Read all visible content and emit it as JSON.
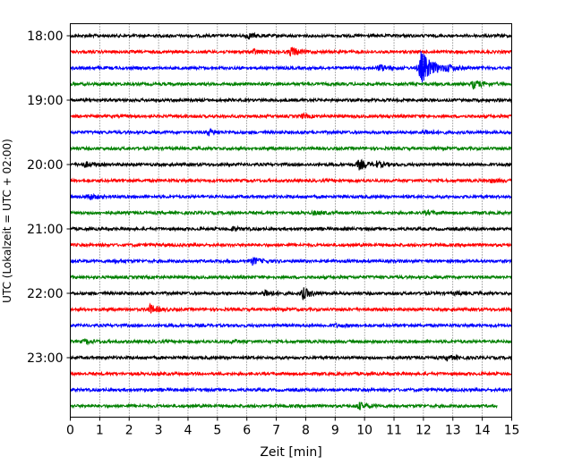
{
  "chart_data": {
    "type": "line",
    "title": "",
    "xlabel": "Zeit  [min]",
    "ylabel": "UTC (Lokalzeit = UTC + 02:00)",
    "xlim": [
      0,
      15
    ],
    "x_ticks": [
      "0",
      "1",
      "2",
      "3",
      "4",
      "5",
      "6",
      "7",
      "8",
      "9",
      "10",
      "11",
      "12",
      "13",
      "14",
      "15"
    ],
    "y_ticks": [
      "18:00",
      "19:00",
      "20:00",
      "21:00",
      "22:00",
      "23:00"
    ],
    "grid": "vertical dotted",
    "colors": [
      "#000000",
      "#ff0000",
      "#0000ff",
      "#008000"
    ],
    "trace_interval_min": 15,
    "traces": [
      {
        "start": "18:00",
        "color": "#000000",
        "events": [
          [
            6.0,
            0.35
          ]
        ]
      },
      {
        "start": "18:15",
        "color": "#ff0000",
        "events": [
          [
            7.5,
            0.6
          ],
          [
            6.2,
            0.3
          ]
        ]
      },
      {
        "start": "18:30",
        "color": "#0000ff",
        "events": [
          [
            11.9,
            2.2
          ],
          [
            10.5,
            0.4
          ],
          [
            12.8,
            0.3
          ]
        ]
      },
      {
        "start": "18:45",
        "color": "#008000",
        "events": [
          [
            13.7,
            0.5
          ]
        ]
      },
      {
        "start": "19:00",
        "color": "#000000",
        "events": []
      },
      {
        "start": "19:15",
        "color": "#ff0000",
        "events": [
          [
            7.9,
            0.2
          ]
        ]
      },
      {
        "start": "19:30",
        "color": "#0000ff",
        "events": [
          [
            4.7,
            0.35
          ],
          [
            12.0,
            0.3
          ]
        ]
      },
      {
        "start": "19:45",
        "color": "#008000",
        "events": []
      },
      {
        "start": "20:00",
        "color": "#000000",
        "events": [
          [
            9.8,
            0.6
          ],
          [
            0.5,
            0.3
          ],
          [
            10.4,
            0.3
          ]
        ]
      },
      {
        "start": "20:15",
        "color": "#ff0000",
        "events": [
          [
            14.3,
            0.2
          ]
        ]
      },
      {
        "start": "20:30",
        "color": "#0000ff",
        "events": [
          [
            0.6,
            0.4
          ]
        ]
      },
      {
        "start": "20:45",
        "color": "#008000",
        "events": [
          [
            8.3,
            0.2
          ],
          [
            12.1,
            0.2
          ]
        ]
      },
      {
        "start": "21:00",
        "color": "#000000",
        "events": [
          [
            5.5,
            0.2
          ]
        ]
      },
      {
        "start": "21:15",
        "color": "#ff0000",
        "events": []
      },
      {
        "start": "21:30",
        "color": "#0000ff",
        "events": [
          [
            6.2,
            0.45
          ],
          [
            1.5,
            0.2
          ]
        ]
      },
      {
        "start": "21:45",
        "color": "#008000",
        "events": []
      },
      {
        "start": "22:00",
        "color": "#000000",
        "events": [
          [
            7.9,
            0.7
          ],
          [
            6.6,
            0.45
          ],
          [
            13.1,
            0.2
          ]
        ]
      },
      {
        "start": "22:15",
        "color": "#ff0000",
        "events": [
          [
            2.7,
            0.55
          ]
        ]
      },
      {
        "start": "22:30",
        "color": "#0000ff",
        "events": [
          [
            9.0,
            0.15
          ]
        ]
      },
      {
        "start": "22:45",
        "color": "#008000",
        "events": [
          [
            0.5,
            0.25
          ],
          [
            5.5,
            0.15
          ]
        ]
      },
      {
        "start": "23:00",
        "color": "#000000",
        "events": [
          [
            12.8,
            0.3
          ]
        ]
      },
      {
        "start": "23:15",
        "color": "#ff0000",
        "events": []
      },
      {
        "start": "23:30",
        "color": "#0000ff",
        "events": []
      },
      {
        "start": "23:45",
        "color": "#008000",
        "events": [
          [
            9.8,
            0.45
          ]
        ],
        "end_min": 14.5
      }
    ]
  }
}
